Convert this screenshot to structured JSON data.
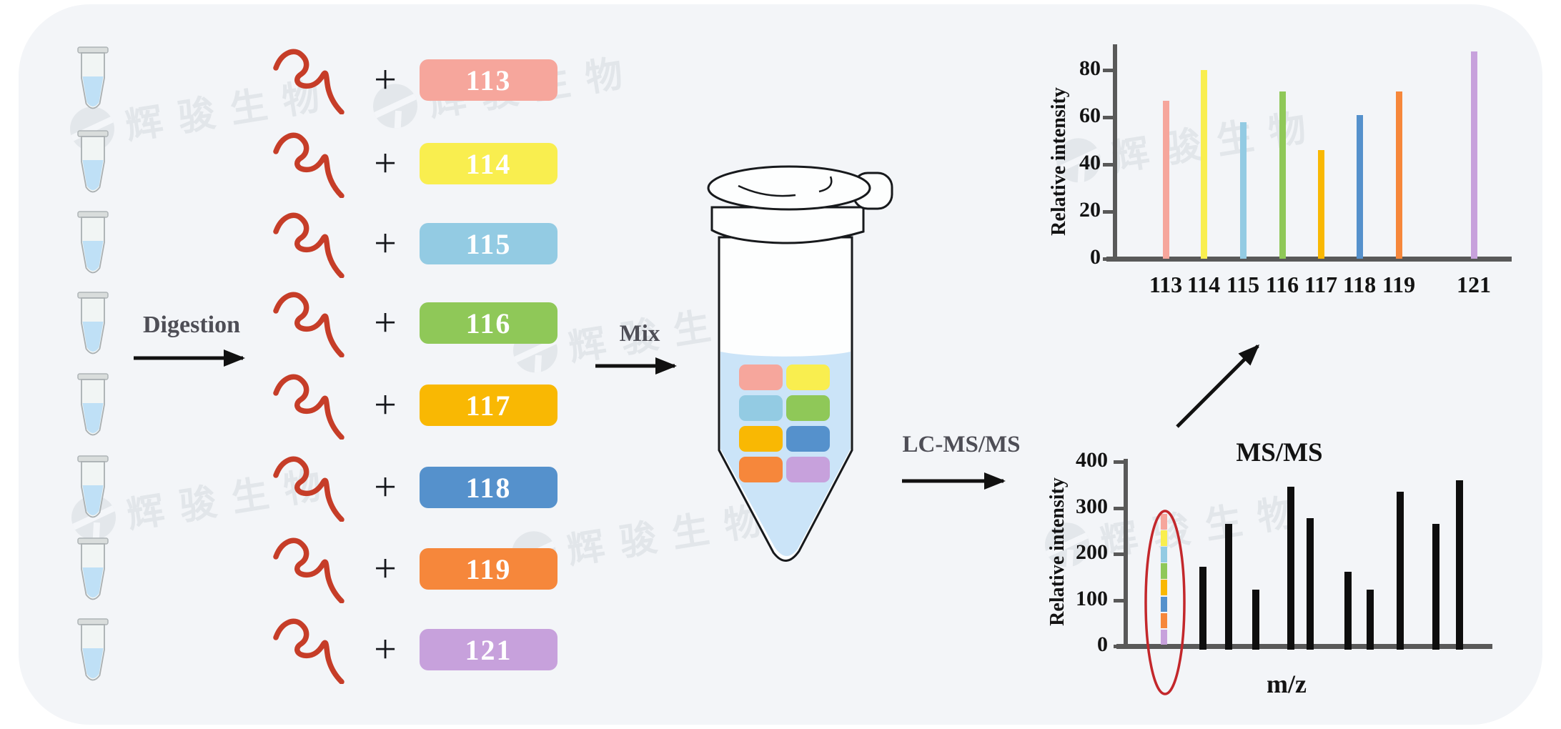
{
  "watermark": {
    "text": "辉骏生物"
  },
  "steps": {
    "digestion": "Digestion",
    "mix": "Mix",
    "lc_ms_ms": "LC-MS/MS"
  },
  "reporter_labels": [
    {
      "value": "113",
      "color": "#F6A69C"
    },
    {
      "value": "114",
      "color": "#F9EE4F"
    },
    {
      "value": "115",
      "color": "#93CBE3"
    },
    {
      "value": "116",
      "color": "#8FC858"
    },
    {
      "value": "117",
      "color": "#F9B803"
    },
    {
      "value": "118",
      "color": "#5591CC"
    },
    {
      "value": "119",
      "color": "#F6873B"
    },
    {
      "value": "121",
      "color": "#C7A1DC"
    }
  ],
  "peptide_color": "#C63D28",
  "tube_liquid_color": "#CBE4F8",
  "chart_data": [
    {
      "type": "bar",
      "title": "",
      "xlabel": "",
      "ylabel": "Relative intensity",
      "categories": [
        "113",
        "114",
        "115",
        "116",
        "117",
        "118",
        "119",
        "121"
      ],
      "values": [
        67,
        80,
        58,
        71,
        46,
        61,
        71,
        88
      ],
      "colors": [
        "#F6A69C",
        "#F9EE4F",
        "#93CBE3",
        "#8FC858",
        "#F9B803",
        "#5591CC",
        "#F6873B",
        "#C7A1DC"
      ],
      "yticks": [
        0,
        20,
        40,
        60,
        80
      ],
      "ylim": [
        0,
        92
      ],
      "grid": false,
      "legend": "none"
    },
    {
      "type": "bar",
      "title": "MS/MS",
      "xlabel": "m/z",
      "ylabel": "Relative intensity",
      "yticks": [
        0,
        100,
        200,
        300,
        400
      ],
      "ylim": [
        0,
        410
      ],
      "grid": false,
      "legend": "none",
      "reporter_stack": {
        "total": 287,
        "segment_colors": [
          "#F6A69C",
          "#F9EE4F",
          "#93CBE3",
          "#8FC858",
          "#F9B803",
          "#5591CC",
          "#F6873B",
          "#C7A1DC"
        ]
      },
      "peak_values": [
        172,
        265,
        122,
        345,
        278,
        161,
        122,
        335,
        265,
        360
      ],
      "annotation_ellipse_color": "#C3272B"
    }
  ]
}
